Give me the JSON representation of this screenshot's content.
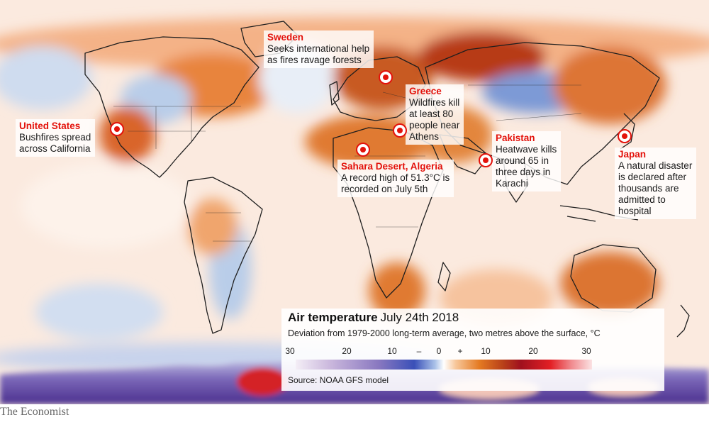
{
  "callouts": {
    "sweden": {
      "title": "Sweden",
      "lines": [
        "Seeks international help",
        "as fires ravage forests"
      ]
    },
    "greece": {
      "title": "Greece",
      "lines": [
        "Wildfires kill",
        "at least 80",
        "people near",
        "Athens"
      ]
    },
    "usa": {
      "title": "United States",
      "lines": [
        "Bushfires spread",
        "across California"
      ]
    },
    "sahara": {
      "title": "Sahara Desert, Algeria",
      "lines": [
        "A record high of 51.3°C is",
        "recorded on July 5th"
      ]
    },
    "pakistan": {
      "title": "Pakistan",
      "lines": [
        "Heatwave kills",
        "around 65 in",
        "three days in",
        "Karachi"
      ]
    },
    "japan": {
      "title": "Japan",
      "lines": [
        "A natural disaster",
        "is declared after",
        "thousands are",
        "admitted to",
        "hospital"
      ]
    }
  },
  "legend": {
    "title": "Air temperature",
    "date": "July 24th 2018",
    "subtitle": "Deviation from 1979-2000 long-term average, two metres above the surface, °C",
    "scale_labels": [
      "30",
      "20",
      "10",
      "–",
      "0",
      "+",
      "10",
      "20",
      "30"
    ],
    "source": "Source: NOAA GFS model"
  },
  "brand": "The Economist",
  "colors": {
    "warm_anomaly": "#e47a22",
    "strong_warm": "#b8401a",
    "extreme_warm": "#e32025",
    "cool_anomaly": "#a9c1e8",
    "strong_cool": "#3a50b8",
    "extreme_cool": "#8978c0",
    "callout_red": "#e3120b"
  }
}
